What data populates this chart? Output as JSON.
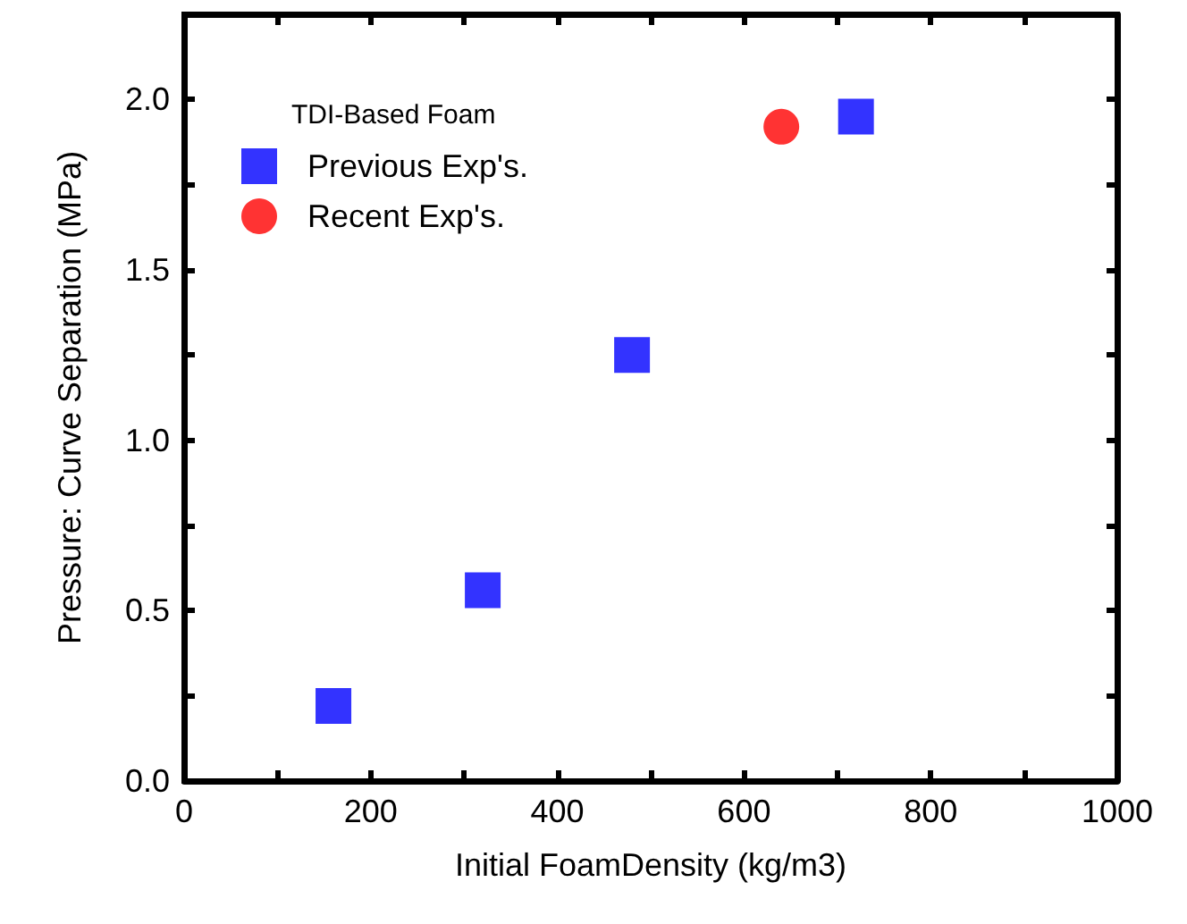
{
  "chart_data": {
    "type": "scatter",
    "xlabel": "Initial FoamDensity (kg/m3)",
    "ylabel": "Pressure: Curve Separation (MPa)",
    "legend_title": "TDI-Based Foam",
    "legend": "top left",
    "grid": false,
    "xlim": [
      0,
      1000
    ],
    "xticks": [
      0,
      {
        "value": 100,
        "label": null
      },
      200,
      {
        "value": 300,
        "label": null
      },
      400,
      {
        "value": 500,
        "label": null
      },
      600,
      {
        "value": 700,
        "label": null
      },
      800,
      {
        "value": 900,
        "label": null
      },
      1000
    ],
    "ylim": [
      0,
      2.25
    ],
    "yticks": [
      {
        "value": 0,
        "label": "0.0"
      },
      {
        "value": 0.25,
        "label": null
      },
      {
        "value": 0.5,
        "label": "0.5"
      },
      {
        "value": 0.75,
        "label": null
      },
      {
        "value": 1,
        "label": "1.0"
      },
      {
        "value": 1.25,
        "label": null
      },
      {
        "value": 1.5,
        "label": "1.5"
      },
      {
        "value": 1.75,
        "label": null
      },
      {
        "value": 2,
        "label": "2.0"
      }
    ],
    "series": [
      {
        "name": "Previous Exp's.",
        "color": "#0000ff",
        "marker": "square",
        "x": [
          160,
          320,
          480,
          720
        ],
        "values": [
          0.22,
          0.56,
          1.25,
          1.95
        ]
      },
      {
        "name": "Recent Exp's.",
        "color": "#ff0000",
        "marker": "circle",
        "x": [
          640
        ],
        "values": [
          1.92
        ]
      }
    ]
  }
}
